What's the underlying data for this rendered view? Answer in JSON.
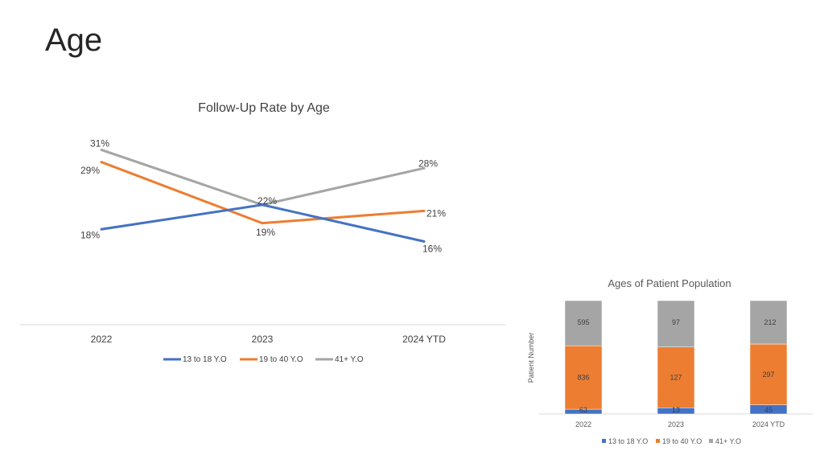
{
  "page": {
    "title": "Age"
  },
  "colors": {
    "series1": "#4472C4",
    "series2": "#ED7D31",
    "series3": "#A5A5A5"
  },
  "chart_data": [
    {
      "type": "line",
      "title": "Follow-Up Rate by Age",
      "categories": [
        "2022",
        "2023",
        "2024 YTD"
      ],
      "unit": "%",
      "ylim": [
        10,
        35
      ],
      "grid": false,
      "legend": "bottom",
      "series": [
        {
          "name": "13 to 18 Y.O",
          "values": [
            18,
            22,
            16
          ],
          "labels": [
            "18%",
            "22%",
            "16%"
          ]
        },
        {
          "name": "19 to 40 Y.O",
          "values": [
            29,
            19,
            21
          ],
          "labels": [
            "29%",
            "19%",
            "21%"
          ]
        },
        {
          "name": "41+ Y.O",
          "values": [
            31,
            22,
            28
          ],
          "labels": [
            "31%",
            "",
            "28%"
          ]
        }
      ]
    },
    {
      "type": "bar",
      "stacked": true,
      "title": "Ages of Patient Population",
      "ylabel": "Patient Number",
      "categories": [
        "2022",
        "2023",
        "2024 YTD"
      ],
      "normalized": true,
      "legend": "bottom",
      "series": [
        {
          "name": "13 to 18 Y.O",
          "values": [
            63,
            13,
            45
          ]
        },
        {
          "name": "19 to 40 Y.O",
          "values": [
            836,
            127,
            297
          ]
        },
        {
          "name": "41+ Y.O",
          "values": [
            595,
            97,
            212
          ]
        }
      ]
    }
  ]
}
